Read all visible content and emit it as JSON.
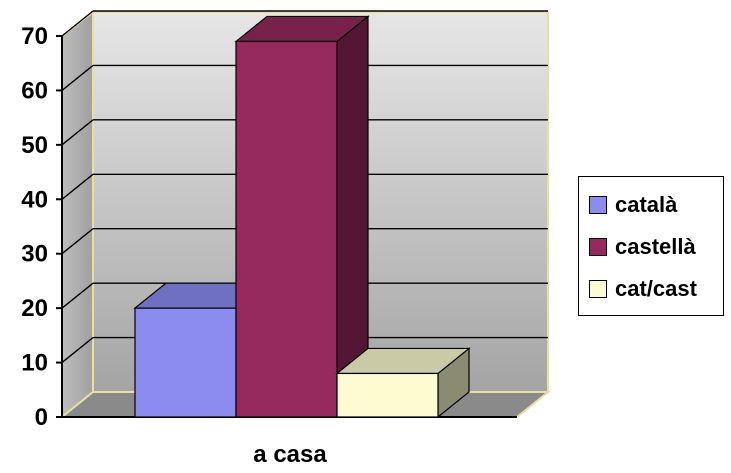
{
  "chart_data": {
    "type": "bar",
    "categories": [
      "a casa"
    ],
    "series": [
      {
        "name": "català",
        "values": [
          20
        ],
        "color": "#8c8cf0"
      },
      {
        "name": "castellà",
        "values": [
          69
        ],
        "color": "#96295e"
      },
      {
        "name": "cat/cast",
        "values": [
          8
        ],
        "color": "#fdfcd0"
      }
    ],
    "yticks": [
      "0",
      "10",
      "20",
      "30",
      "40",
      "50",
      "60",
      "70"
    ],
    "ylim": [
      0,
      70
    ],
    "grid": true,
    "legend_position": "right",
    "style": "3d-columns"
  }
}
